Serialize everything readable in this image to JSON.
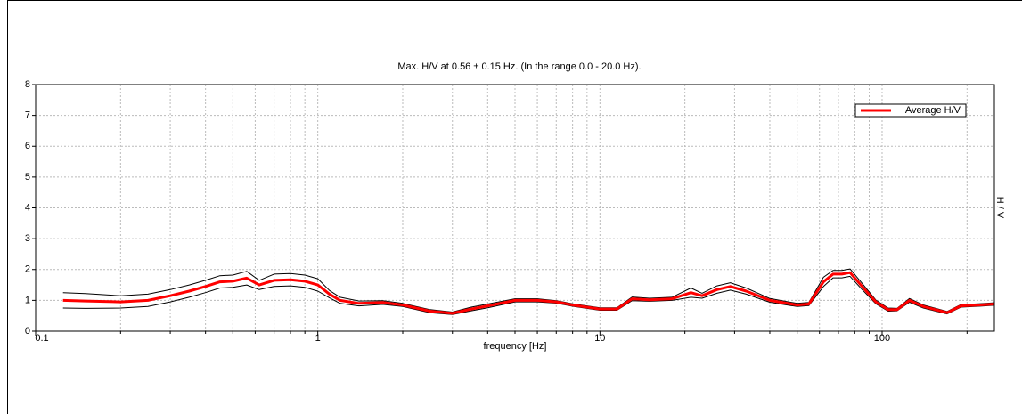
{
  "chart_data": {
    "type": "line",
    "title": "Max. H/V at 0.56 ± 0.15 Hz. (In the range 0.0 - 20.0 Hz).",
    "x_label": "frequency [Hz]",
    "y_label": "H / V",
    "x": [
      0.125,
      0.15,
      0.2,
      0.25,
      0.3,
      0.35,
      0.4,
      0.45,
      0.5,
      0.56,
      0.62,
      0.7,
      0.8,
      0.9,
      1,
      1.1,
      1.2,
      1.4,
      1.7,
      2,
      2.5,
      3,
      3.5,
      4,
      5,
      6,
      7,
      8,
      10,
      11.5,
      13,
      15,
      18,
      21,
      23,
      26,
      29,
      33,
      40,
      50,
      55,
      62,
      67,
      72,
      77,
      85,
      95,
      105,
      113,
      125,
      140,
      170,
      190,
      220,
      250
    ],
    "series": [
      {
        "color": "#000000",
        "values": [
          1.25,
          1.22,
          1.15,
          1.2,
          1.35,
          1.5,
          1.65,
          1.8,
          1.82,
          1.94,
          1.65,
          1.85,
          1.87,
          1.82,
          1.7,
          1.32,
          1.1,
          0.98,
          0.99,
          0.9,
          0.7,
          0.62,
          0.78,
          0.88,
          1.05,
          1.05,
          0.99,
          0.89,
          0.76,
          0.76,
          1.11,
          1.07,
          1.1,
          1.4,
          1.23,
          1.47,
          1.57,
          1.4,
          1.06,
          0.9,
          0.93,
          1.75,
          1.97,
          1.97,
          2.02,
          1.55,
          1.01,
          0.75,
          0.74,
          1.06,
          0.85,
          0.64,
          0.86,
          0.89,
          0.92
        ]
      },
      {
        "color": "#000000",
        "values": [
          0.75,
          0.74,
          0.75,
          0.8,
          0.95,
          1.1,
          1.25,
          1.4,
          1.42,
          1.5,
          1.35,
          1.45,
          1.47,
          1.42,
          1.3,
          1.08,
          0.9,
          0.82,
          0.87,
          0.8,
          0.6,
          0.54,
          0.66,
          0.76,
          0.95,
          0.95,
          0.91,
          0.81,
          0.68,
          0.68,
          0.99,
          0.97,
          1.0,
          1.1,
          1.07,
          1.23,
          1.33,
          1.2,
          0.94,
          0.8,
          0.83,
          1.45,
          1.73,
          1.73,
          1.78,
          1.35,
          0.89,
          0.65,
          0.66,
          0.94,
          0.75,
          0.56,
          0.78,
          0.81,
          0.84
        ]
      },
      {
        "name": "Average H/V",
        "color": "#ff0000",
        "values": [
          1.0,
          0.98,
          0.95,
          1.0,
          1.15,
          1.3,
          1.45,
          1.6,
          1.62,
          1.72,
          1.5,
          1.65,
          1.67,
          1.62,
          1.5,
          1.2,
          1.0,
          0.9,
          0.93,
          0.85,
          0.65,
          0.58,
          0.72,
          0.82,
          1.0,
          1.0,
          0.95,
          0.85,
          0.72,
          0.72,
          1.05,
          1.02,
          1.05,
          1.25,
          1.15,
          1.35,
          1.45,
          1.3,
          1.0,
          0.85,
          0.88,
          1.6,
          1.85,
          1.85,
          1.9,
          1.45,
          0.95,
          0.7,
          0.7,
          1.0,
          0.8,
          0.6,
          0.82,
          0.85,
          0.88
        ]
      }
    ],
    "xlog": true,
    "xlim": [
      0.1,
      250
    ],
    "xticks": [
      0.1,
      1,
      10,
      100
    ],
    "xminorticks": [
      0.2,
      0.3,
      0.4,
      0.5,
      0.6,
      0.7,
      0.8,
      0.9,
      2,
      3,
      4,
      5,
      6,
      7,
      8,
      9,
      20,
      30,
      40,
      50,
      60,
      70,
      80,
      90,
      200
    ],
    "ylim": [
      0,
      8
    ],
    "yticks": [
      0,
      1,
      2,
      3,
      4,
      5,
      6,
      7,
      8
    ],
    "grid": true,
    "legend": "upper right"
  }
}
